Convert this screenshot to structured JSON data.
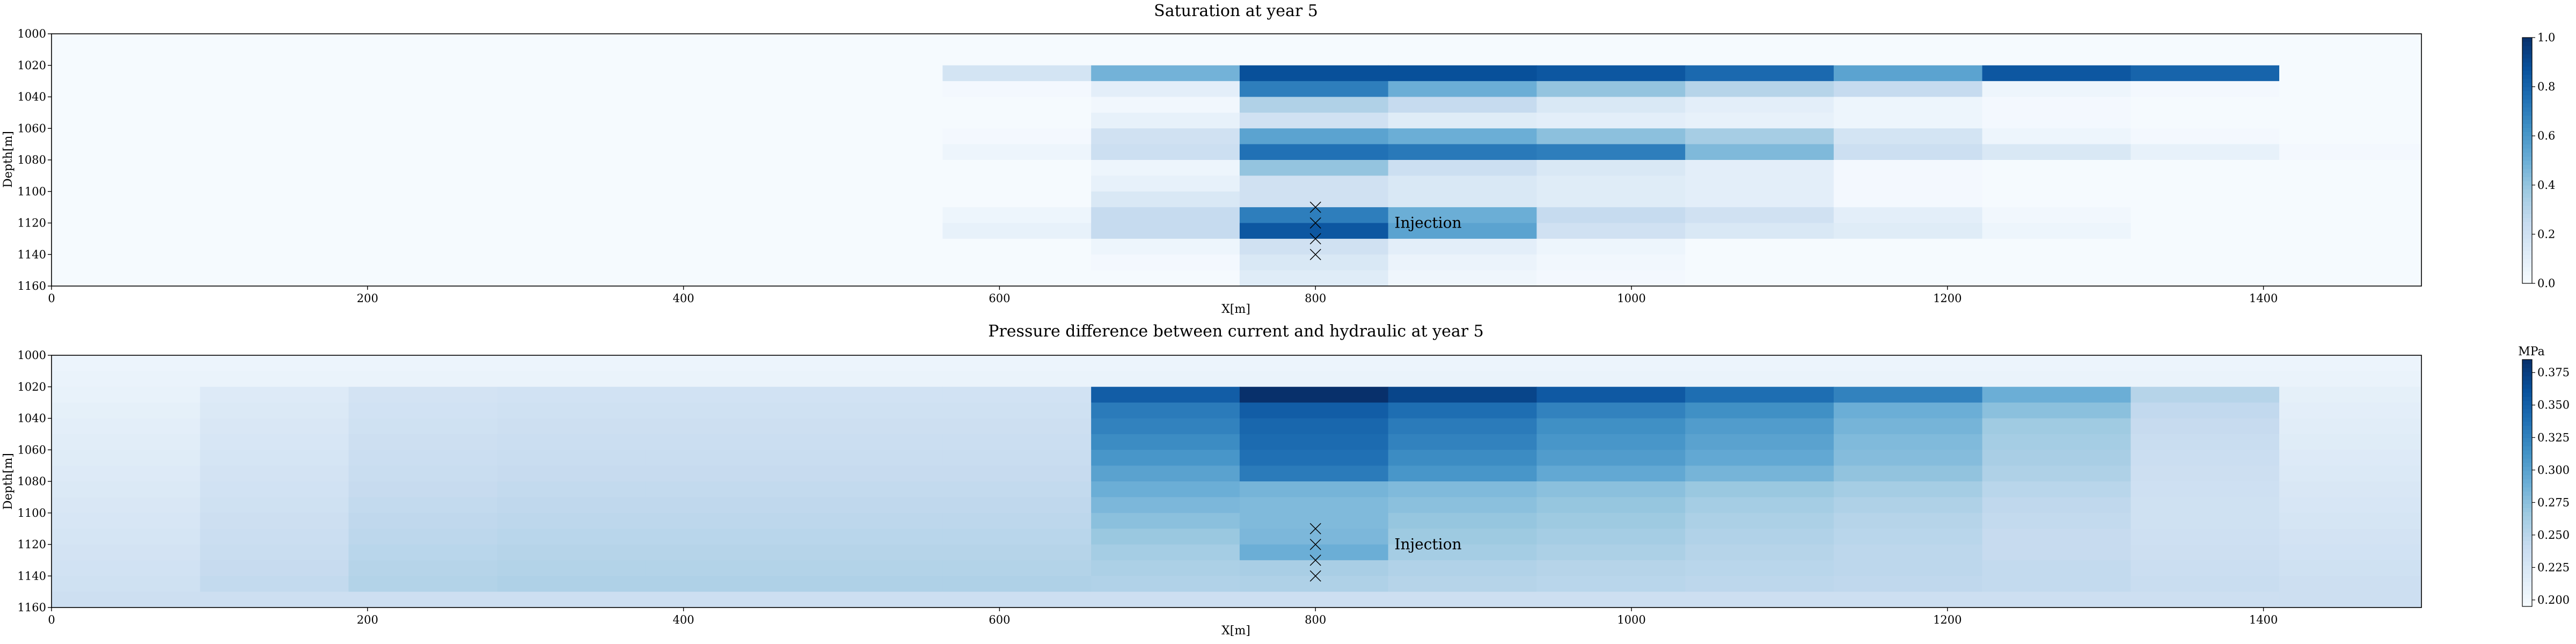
{
  "chart_data": [
    {
      "type": "heatmap",
      "title": "Saturation at year 5",
      "xlabel": "X[m]",
      "ylabel": "Depth[m]",
      "xlim": [
        0,
        1500
      ],
      "ylim": [
        1160,
        1000
      ],
      "x_ticks": [
        "0",
        "200",
        "400",
        "600",
        "800",
        "1000",
        "1200",
        "1400"
      ],
      "y_ticks": [
        "1000",
        "1020",
        "1040",
        "1060",
        "1080",
        "1100",
        "1120",
        "1140",
        "1160"
      ],
      "colormap": "Blues",
      "color_range": [
        0.0,
        1.0
      ],
      "colorbar_label": "",
      "colorbar_ticks": [
        "0.0",
        "0.2",
        "0.4",
        "0.6",
        "0.8",
        "1.0"
      ],
      "x_edges": [
        0,
        94,
        188,
        282,
        376,
        470,
        564,
        658,
        752,
        846,
        940,
        1034,
        1128,
        1222,
        1316,
        1410,
        1500
      ],
      "y_edges": [
        1000,
        1020,
        1030,
        1040,
        1050,
        1060,
        1070,
        1080,
        1090,
        1100,
        1110,
        1120,
        1130,
        1140,
        1150,
        1160
      ],
      "values": [
        [
          0.01,
          0.01,
          0.01,
          0.01,
          0.01,
          0.01,
          0.01,
          0.01,
          0.01,
          0.01,
          0.01,
          0.01,
          0.01,
          0.01,
          0.01,
          0.01
        ],
        [
          0.01,
          0.01,
          0.01,
          0.01,
          0.01,
          0.01,
          0.18,
          0.48,
          0.88,
          0.88,
          0.85,
          0.78,
          0.55,
          0.85,
          0.8,
          0.01
        ],
        [
          0.01,
          0.01,
          0.01,
          0.01,
          0.01,
          0.01,
          0.02,
          0.1,
          0.7,
          0.5,
          0.4,
          0.3,
          0.25,
          0.05,
          0.02,
          0.01
        ],
        [
          0.01,
          0.01,
          0.01,
          0.01,
          0.01,
          0.01,
          0.01,
          0.03,
          0.32,
          0.25,
          0.15,
          0.1,
          0.05,
          0.02,
          0.01,
          0.01
        ],
        [
          0.01,
          0.01,
          0.01,
          0.01,
          0.01,
          0.01,
          0.01,
          0.08,
          0.2,
          0.12,
          0.1,
          0.08,
          0.05,
          0.02,
          0.01,
          0.01
        ],
        [
          0.01,
          0.01,
          0.01,
          0.01,
          0.01,
          0.01,
          0.02,
          0.2,
          0.55,
          0.5,
          0.42,
          0.35,
          0.18,
          0.05,
          0.02,
          0.01
        ],
        [
          0.01,
          0.01,
          0.01,
          0.01,
          0.01,
          0.01,
          0.05,
          0.22,
          0.75,
          0.72,
          0.7,
          0.45,
          0.22,
          0.15,
          0.08,
          0.02
        ],
        [
          0.01,
          0.01,
          0.01,
          0.01,
          0.01,
          0.01,
          0.01,
          0.05,
          0.4,
          0.22,
          0.15,
          0.1,
          0.02,
          0.01,
          0.01,
          0.01
        ],
        [
          0.01,
          0.01,
          0.01,
          0.01,
          0.01,
          0.01,
          0.01,
          0.08,
          0.2,
          0.15,
          0.12,
          0.1,
          0.02,
          0.01,
          0.01,
          0.01
        ],
        [
          0.01,
          0.01,
          0.01,
          0.01,
          0.01,
          0.01,
          0.01,
          0.15,
          0.2,
          0.15,
          0.12,
          0.1,
          0.02,
          0.01,
          0.01,
          0.01
        ],
        [
          0.01,
          0.01,
          0.01,
          0.01,
          0.01,
          0.01,
          0.05,
          0.25,
          0.7,
          0.5,
          0.25,
          0.2,
          0.1,
          0.03,
          0.01,
          0.01
        ],
        [
          0.01,
          0.01,
          0.01,
          0.01,
          0.01,
          0.01,
          0.08,
          0.25,
          0.85,
          0.55,
          0.2,
          0.15,
          0.12,
          0.05,
          0.01,
          0.01
        ],
        [
          0.01,
          0.01,
          0.01,
          0.01,
          0.01,
          0.01,
          0.01,
          0.05,
          0.2,
          0.1,
          0.05,
          0.01,
          0.01,
          0.01,
          0.01,
          0.01
        ],
        [
          0.01,
          0.01,
          0.01,
          0.01,
          0.01,
          0.01,
          0.01,
          0.02,
          0.15,
          0.06,
          0.03,
          0.01,
          0.01,
          0.01,
          0.01,
          0.01
        ],
        [
          0.01,
          0.01,
          0.01,
          0.01,
          0.01,
          0.01,
          0.01,
          0.01,
          0.12,
          0.04,
          0.02,
          0.01,
          0.01,
          0.01,
          0.01,
          0.01
        ]
      ],
      "markers": [
        {
          "x": 800,
          "y": 1110
        },
        {
          "x": 800,
          "y": 1120
        },
        {
          "x": 800,
          "y": 1130
        },
        {
          "x": 800,
          "y": 1140
        }
      ],
      "annotation": {
        "text": "Injection",
        "x": 850,
        "y": 1120
      }
    },
    {
      "type": "heatmap",
      "title": "Pressure difference between current and hydraulic at year 5",
      "xlabel": "X[m]",
      "ylabel": "Depth[m]",
      "xlim": [
        0,
        1500
      ],
      "ylim": [
        1160,
        1000
      ],
      "x_ticks": [
        "0",
        "200",
        "400",
        "600",
        "800",
        "1000",
        "1200",
        "1400"
      ],
      "y_ticks": [
        "1000",
        "1020",
        "1040",
        "1060",
        "1080",
        "1100",
        "1120",
        "1140",
        "1160"
      ],
      "colormap": "Blues",
      "color_range": [
        0.195,
        0.385
      ],
      "colorbar_label": "MPa",
      "colorbar_ticks": [
        "0.200",
        "0.225",
        "0.250",
        "0.275",
        "0.300",
        "0.325",
        "0.350",
        "0.375"
      ],
      "colorbar_tick_values": [
        0.2,
        0.225,
        0.25,
        0.275,
        0.3,
        0.325,
        0.35,
        0.375
      ],
      "x_edges": [
        0,
        94,
        188,
        282,
        376,
        470,
        564,
        658,
        752,
        846,
        940,
        1034,
        1128,
        1222,
        1316,
        1410,
        1500
      ],
      "y_edges": [
        1000,
        1010,
        1020,
        1030,
        1040,
        1050,
        1060,
        1070,
        1080,
        1090,
        1100,
        1110,
        1120,
        1130,
        1140,
        1150,
        1160
      ],
      "values": [
        [
          0.205,
          0.205,
          0.205,
          0.205,
          0.205,
          0.205,
          0.205,
          0.205,
          0.205,
          0.205,
          0.205,
          0.205,
          0.205,
          0.205,
          0.205,
          0.205
        ],
        [
          0.207,
          0.207,
          0.207,
          0.207,
          0.207,
          0.207,
          0.207,
          0.207,
          0.207,
          0.207,
          0.207,
          0.207,
          0.207,
          0.207,
          0.207,
          0.207
        ],
        [
          0.209,
          0.22,
          0.23,
          0.232,
          0.232,
          0.232,
          0.232,
          0.352,
          0.385,
          0.37,
          0.355,
          0.34,
          0.325,
          0.29,
          0.252,
          0.212
        ],
        [
          0.212,
          0.222,
          0.232,
          0.234,
          0.234,
          0.234,
          0.234,
          0.33,
          0.352,
          0.34,
          0.325,
          0.315,
          0.29,
          0.275,
          0.245,
          0.214
        ],
        [
          0.214,
          0.224,
          0.234,
          0.236,
          0.236,
          0.236,
          0.236,
          0.325,
          0.345,
          0.33,
          0.315,
          0.305,
          0.285,
          0.265,
          0.242,
          0.216
        ],
        [
          0.216,
          0.226,
          0.236,
          0.238,
          0.238,
          0.238,
          0.238,
          0.318,
          0.342,
          0.325,
          0.31,
          0.3,
          0.28,
          0.262,
          0.24,
          0.218
        ],
        [
          0.218,
          0.228,
          0.238,
          0.24,
          0.24,
          0.24,
          0.24,
          0.31,
          0.338,
          0.318,
          0.305,
          0.295,
          0.278,
          0.26,
          0.238,
          0.22
        ],
        [
          0.22,
          0.23,
          0.24,
          0.242,
          0.242,
          0.242,
          0.242,
          0.3,
          0.33,
          0.31,
          0.295,
          0.285,
          0.272,
          0.256,
          0.236,
          0.222
        ],
        [
          0.222,
          0.232,
          0.242,
          0.244,
          0.244,
          0.244,
          0.244,
          0.29,
          0.285,
          0.28,
          0.275,
          0.268,
          0.262,
          0.25,
          0.235,
          0.224
        ],
        [
          0.224,
          0.234,
          0.244,
          0.246,
          0.246,
          0.246,
          0.246,
          0.282,
          0.28,
          0.275,
          0.27,
          0.262,
          0.256,
          0.246,
          0.234,
          0.226
        ],
        [
          0.226,
          0.236,
          0.246,
          0.248,
          0.248,
          0.248,
          0.248,
          0.275,
          0.28,
          0.27,
          0.266,
          0.258,
          0.252,
          0.244,
          0.234,
          0.228
        ],
        [
          0.228,
          0.238,
          0.248,
          0.25,
          0.25,
          0.25,
          0.25,
          0.268,
          0.282,
          0.266,
          0.262,
          0.255,
          0.25,
          0.242,
          0.235,
          0.23
        ],
        [
          0.23,
          0.24,
          0.25,
          0.252,
          0.252,
          0.252,
          0.252,
          0.262,
          0.29,
          0.262,
          0.258,
          0.252,
          0.248,
          0.242,
          0.236,
          0.232
        ],
        [
          0.232,
          0.242,
          0.252,
          0.254,
          0.254,
          0.254,
          0.254,
          0.258,
          0.26,
          0.255,
          0.252,
          0.25,
          0.248,
          0.244,
          0.238,
          0.234
        ],
        [
          0.234,
          0.244,
          0.254,
          0.256,
          0.256,
          0.256,
          0.256,
          0.255,
          0.256,
          0.252,
          0.25,
          0.248,
          0.246,
          0.244,
          0.24,
          0.236
        ],
        [
          0.236,
          0.236,
          0.236,
          0.236,
          0.236,
          0.236,
          0.236,
          0.236,
          0.236,
          0.236,
          0.236,
          0.236,
          0.236,
          0.236,
          0.236,
          0.236
        ]
      ],
      "markers": [
        {
          "x": 800,
          "y": 1110
        },
        {
          "x": 800,
          "y": 1120
        },
        {
          "x": 800,
          "y": 1130
        },
        {
          "x": 800,
          "y": 1140
        }
      ],
      "annotation": {
        "text": "Injection",
        "x": 850,
        "y": 1120
      }
    }
  ]
}
